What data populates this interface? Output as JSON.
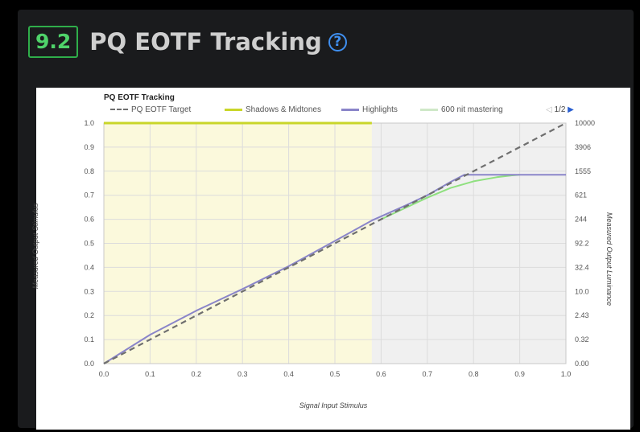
{
  "header": {
    "section_number": "9.2",
    "title": "PQ EOTF Tracking",
    "help_glyph": "?"
  },
  "colors": {
    "section_accent": "#2fae4a",
    "help_icon": "#3f8ff0",
    "target": "#6f6f6f",
    "shadows_midtones": "#c9d629",
    "highlights": "#8a85c9",
    "mastering_600": "#8fe07f",
    "shadows_region": "#fbf9dc",
    "highlights_region": "#f0f0f0"
  },
  "icons": {
    "help": "question-circle-icon",
    "pager_prev": "triangle-left-icon",
    "pager_next": "triangle-right-icon"
  },
  "pager": {
    "prev": "◁",
    "label": "1/2",
    "next": "▶"
  },
  "chart_data": {
    "type": "line",
    "title": "PQ EOTF Tracking",
    "xlabel": "Signal Input Stimulus",
    "ylabel": "Measured Output Stimulus",
    "ylabel_right": "Measured Output Luminance",
    "xlim": [
      0,
      1
    ],
    "ylim": [
      0,
      1
    ],
    "x_ticks": [
      "0.0",
      "0.1",
      "0.2",
      "0.3",
      "0.4",
      "0.5",
      "0.6",
      "0.7",
      "0.8",
      "0.9",
      "1.0"
    ],
    "y_ticks": [
      "0.0",
      "0.1",
      "0.2",
      "0.3",
      "0.4",
      "0.5",
      "0.6",
      "0.7",
      "0.8",
      "0.9",
      "1.0"
    ],
    "y_right_ticks": [
      "0.00",
      "0.32",
      "2.43",
      "10.0",
      "32.4",
      "92.2",
      "244",
      "621",
      "1555",
      "3906",
      "10000"
    ],
    "grid": true,
    "legend_placement": "top",
    "regions": [
      {
        "name": "Shadows & Midtones",
        "x_range": [
          0,
          0.58
        ]
      },
      {
        "name": "Highlights",
        "x_range": [
          0.58,
          1.0
        ]
      }
    ],
    "series": [
      {
        "name": "PQ EOTF Target",
        "style": "dashed",
        "x": [
          0,
          1
        ],
        "y": [
          0,
          1
        ]
      },
      {
        "name": "Shadows & Midtones",
        "style": "solid",
        "x": [
          0,
          0.58
        ],
        "y": [
          1.0,
          1.0
        ]
      },
      {
        "name": "Highlights",
        "style": "solid",
        "x": [
          0,
          0.1,
          0.2,
          0.3,
          0.4,
          0.5,
          0.58,
          0.65,
          0.7,
          0.75,
          0.78,
          0.85,
          0.9,
          0.95,
          1.0
        ],
        "y": [
          0,
          0.12,
          0.22,
          0.31,
          0.405,
          0.51,
          0.595,
          0.655,
          0.7,
          0.755,
          0.785,
          0.785,
          0.785,
          0.785,
          0.785
        ]
      },
      {
        "name": "600 nit mastering",
        "style": "solid",
        "x": [
          0.6,
          0.65,
          0.7,
          0.75,
          0.8,
          0.85,
          0.88,
          0.9
        ],
        "y": [
          0.6,
          0.645,
          0.69,
          0.73,
          0.758,
          0.775,
          0.782,
          0.785
        ]
      }
    ]
  }
}
